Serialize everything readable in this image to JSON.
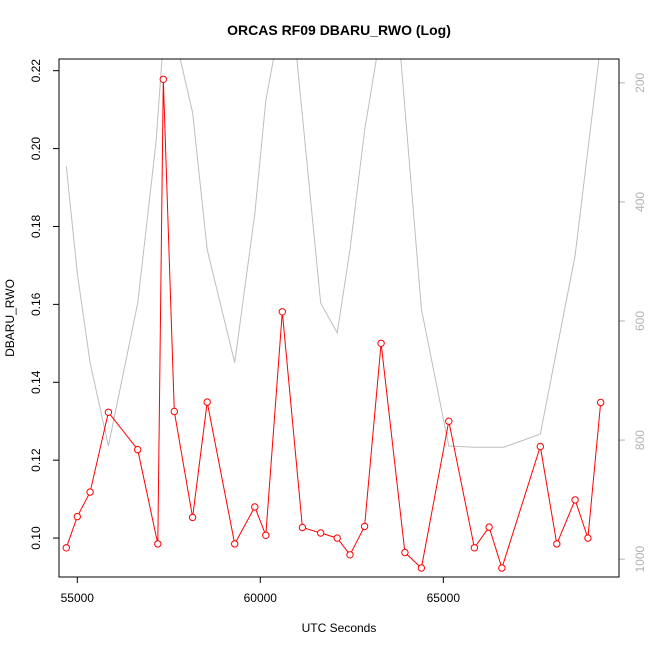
{
  "chart_data": {
    "type": "line",
    "title": "ORCAS RF09 DBARU_RWO (Log)",
    "xlabel": "UTC Seconds",
    "ylabel": "DBARU_RWO",
    "xlim": [
      54500,
      69800
    ],
    "ylim": [
      0.09,
      0.223
    ],
    "y2lim": [
      1030,
      160
    ],
    "y2_reversed": true,
    "x_ticks": [
      55000,
      60000,
      65000
    ],
    "y_ticks": [
      0.1,
      0.12,
      0.14,
      0.16,
      0.18,
      0.2,
      0.22
    ],
    "y2_ticks": [
      200,
      400,
      600,
      800,
      1000
    ],
    "grid": false,
    "series": [
      {
        "color": "#ff0000",
        "marker": "open-circle",
        "axis": "left",
        "points": [
          [
            54700,
            0.0975
          ],
          [
            55000,
            0.1055
          ],
          [
            55350,
            0.1118
          ],
          [
            55850,
            0.1323
          ],
          [
            56650,
            0.1227
          ],
          [
            57200,
            0.0985
          ],
          [
            57350,
            0.2178
          ],
          [
            57650,
            0.1325
          ],
          [
            58150,
            0.1053
          ],
          [
            58550,
            0.1349
          ],
          [
            59300,
            0.0985
          ],
          [
            59850,
            0.108
          ],
          [
            60150,
            0.1007
          ],
          [
            60600,
            0.1581
          ],
          [
            61150,
            0.1027
          ],
          [
            61650,
            0.1013
          ],
          [
            62100,
            0.1
          ],
          [
            62450,
            0.0957
          ],
          [
            62850,
            0.103
          ],
          [
            63300,
            0.15
          ],
          [
            63950,
            0.0963
          ],
          [
            64400,
            0.0923
          ],
          [
            65150,
            0.13
          ],
          [
            65850,
            0.0975
          ],
          [
            66250,
            0.1028
          ],
          [
            66600,
            0.0923
          ],
          [
            67650,
            0.1235
          ],
          [
            68100,
            0.0985
          ],
          [
            68600,
            0.1098
          ],
          [
            68950,
            0.1
          ],
          [
            69300,
            0.1348
          ]
        ]
      },
      {
        "color": "#bebebe",
        "marker": "none",
        "axis": "right",
        "points": [
          [
            54700,
            340
          ],
          [
            55000,
            520
          ],
          [
            55350,
            670
          ],
          [
            55850,
            810
          ],
          [
            56650,
            570
          ],
          [
            57150,
            300
          ],
          [
            57350,
            130
          ],
          [
            57700,
            130
          ],
          [
            58150,
            250
          ],
          [
            58550,
            480
          ],
          [
            59300,
            670
          ],
          [
            59850,
            420
          ],
          [
            60150,
            230
          ],
          [
            60450,
            130
          ],
          [
            60950,
            130
          ],
          [
            61650,
            570
          ],
          [
            62100,
            620
          ],
          [
            62450,
            480
          ],
          [
            62850,
            280
          ],
          [
            63250,
            130
          ],
          [
            63800,
            130
          ],
          [
            64400,
            580
          ],
          [
            65150,
            810
          ],
          [
            65850,
            812
          ],
          [
            66650,
            812
          ],
          [
            67650,
            790
          ],
          [
            68600,
            490
          ],
          [
            69250,
            160
          ],
          [
            69400,
            130
          ]
        ]
      }
    ]
  }
}
